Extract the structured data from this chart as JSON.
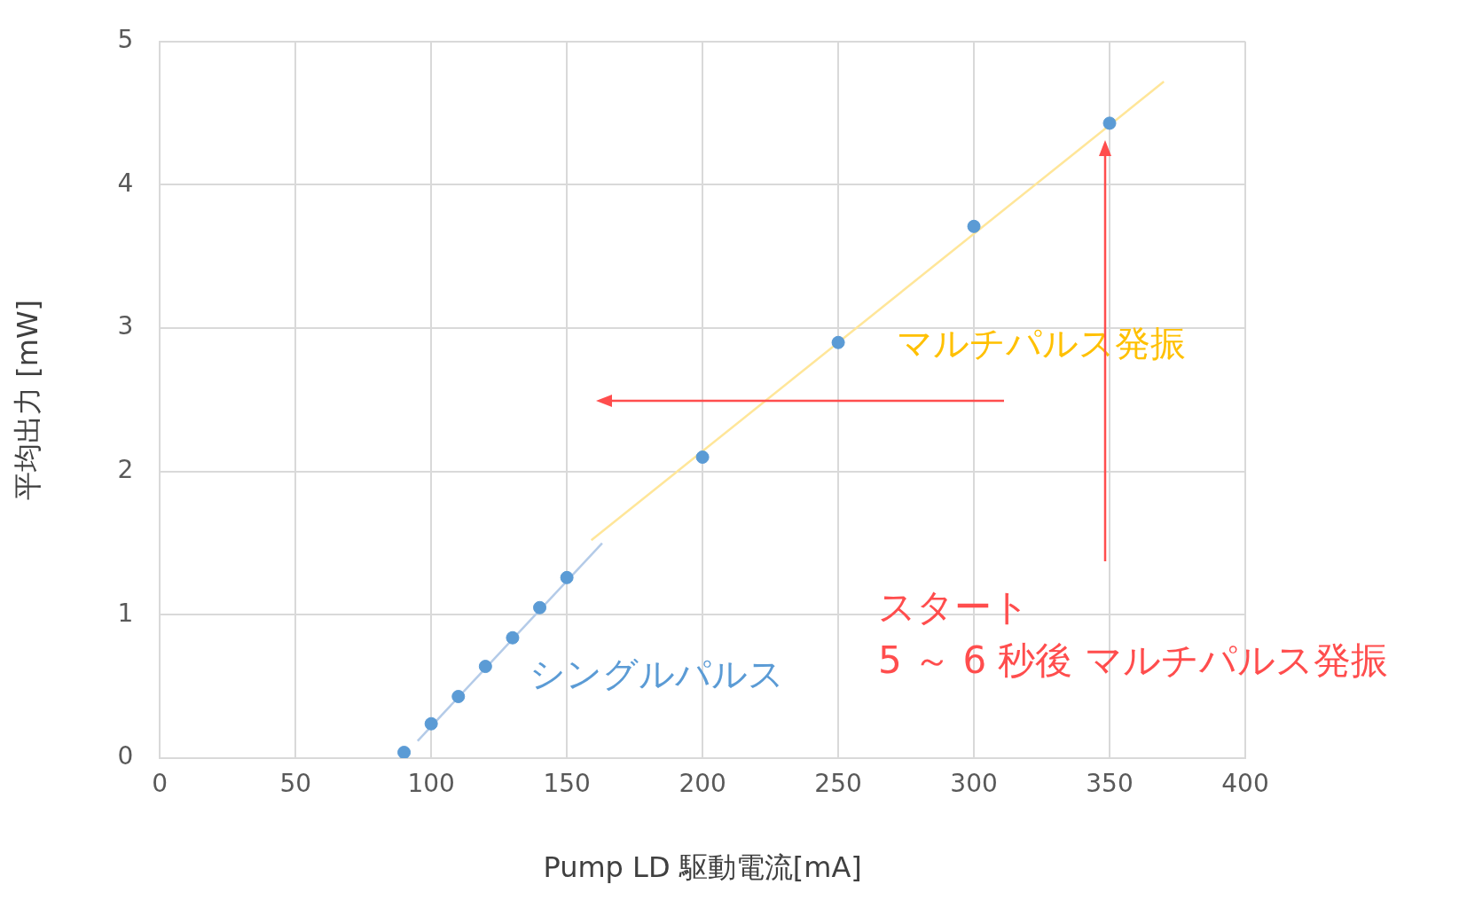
{
  "chart_data": {
    "type": "scatter",
    "xlabel": "Pump LD 駆動電流[mA]",
    "ylabel": "平均出力 [mW]",
    "xlim": [
      0,
      400
    ],
    "xticks": [
      0,
      50,
      100,
      150,
      200,
      250,
      300,
      350,
      400
    ],
    "ylim": [
      0,
      5
    ],
    "yticks": [
      0,
      1,
      2,
      3,
      4,
      5
    ],
    "grid": true,
    "legend": false,
    "marker": "circle",
    "series": [
      {
        "color": "#5b9bd5",
        "x": [
          90,
          100,
          110,
          120,
          130,
          140,
          150,
          200,
          250,
          300,
          350
        ],
        "values": [
          0.04,
          0.24,
          0.43,
          0.64,
          0.84,
          1.05,
          1.26,
          2.1,
          2.9,
          3.71,
          4.43
        ]
      },
      {
        "type": "line",
        "name": "シングルパルス",
        "color": "#b4cbe8",
        "marker": "none",
        "x": [
          95,
          163
        ],
        "values": [
          0.12,
          1.5
        ]
      },
      {
        "type": "line",
        "name": "マルチパルス発振",
        "color": "#ffe699",
        "marker": "none",
        "x": [
          159,
          370
        ],
        "values": [
          1.52,
          4.72
        ]
      }
    ],
    "annotations": [
      "スタート\n5 ～ 6 秒後 マルチパルス発振"
    ]
  }
}
